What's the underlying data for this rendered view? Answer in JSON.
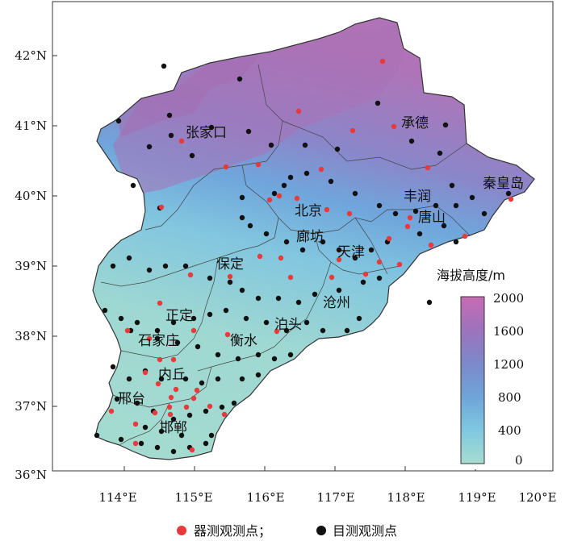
{
  "map": {
    "lat_ticks": [
      "42°N",
      "41°N",
      "40°N",
      "39°N",
      "38°N",
      "37°N",
      "36°N"
    ],
    "lon_ticks": [
      "114°E",
      "115°E",
      "116°E",
      "117°E",
      "118°E",
      "119°E",
      "120°E"
    ],
    "cities": [
      {
        "key": "zhangjiakou",
        "label": "张家口"
      },
      {
        "key": "chengde",
        "label": "承德"
      },
      {
        "key": "qinhuangdao",
        "label": "秦皇岛"
      },
      {
        "key": "fengrun",
        "label": "丰润"
      },
      {
        "key": "beijing",
        "label": "北京"
      },
      {
        "key": "tangshan",
        "label": "唐山"
      },
      {
        "key": "langfang",
        "label": "廊坊"
      },
      {
        "key": "tianjin",
        "label": "天津"
      },
      {
        "key": "baoding",
        "label": "保定"
      },
      {
        "key": "cangzhou",
        "label": "沧州"
      },
      {
        "key": "zhengding",
        "label": "正定"
      },
      {
        "key": "botou",
        "label": "泊头"
      },
      {
        "key": "shijiazhuang",
        "label": "石家庄"
      },
      {
        "key": "hengshui",
        "label": "衡水"
      },
      {
        "key": "neiqiu",
        "label": "内丘"
      },
      {
        "key": "xingtai",
        "label": "邢台"
      },
      {
        "key": "handan",
        "label": "邯郸"
      }
    ],
    "colorbar": {
      "title": "海拔高度/m",
      "ticks": [
        "2000",
        "1600",
        "1200",
        "800",
        "400",
        "0"
      ],
      "colors": [
        "#c46ab2",
        "#9a71bb",
        "#7d82c6",
        "#6f9bd6",
        "#74bddf",
        "#8fd3d5",
        "#a8ddd0"
      ]
    },
    "legend": {
      "instrument_label": "器测观测点；",
      "visual_label": "目测观测点",
      "instrument_color": "#e8393b",
      "visual_color": "#111111"
    }
  }
}
